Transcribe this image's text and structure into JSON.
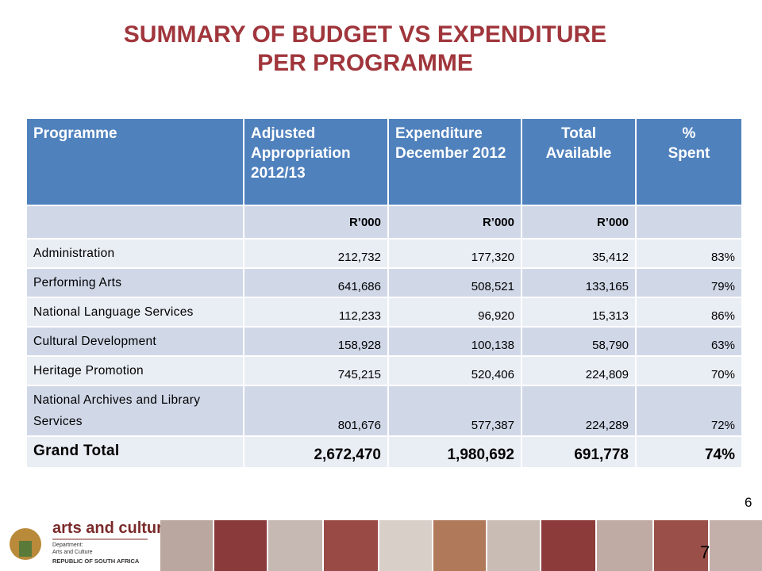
{
  "header": {
    "title": [
      "SUMMARY OF BUDGET VS EXPENDITURE",
      "PER PROGRAMME"
    ]
  },
  "table": {
    "columns": [
      "Programme",
      "Adjusted Appropriation 2012/13",
      "Expenditure December 2012",
      "Total Available",
      "%\nSpent"
    ],
    "units": [
      "R’000",
      "R’000",
      "R’000"
    ],
    "rows": [
      [
        "Administration",
        "212,732",
        "177,320",
        "35,412",
        "83%"
      ],
      [
        "Performing Arts",
        "641,686",
        "508,521",
        "133,165",
        "79%"
      ],
      [
        "National Language Services",
        "112,233",
        "96,920",
        "15,313",
        "86%"
      ],
      [
        "Cultural Development",
        "158,928",
        "100,138",
        "58,790",
        "63%"
      ],
      [
        "Heritage Promotion",
        "745,215",
        "520,406",
        "224,809",
        "70%"
      ],
      [
        "National  Archives and Library Services",
        "801,676",
        "577,387",
        "224,289",
        "72%"
      ]
    ],
    "total": [
      "Grand Total",
      "2,672,470",
      "1,980,692",
      "691,778",
      "74%"
    ]
  },
  "footer": {
    "slide_numbers": [
      "6",
      "7"
    ],
    "logo": {
      "name": "arts and culture",
      "department": "Department:\nArts and Culture",
      "country": "REPUBLIC OF SOUTH AFRICA"
    }
  }
}
